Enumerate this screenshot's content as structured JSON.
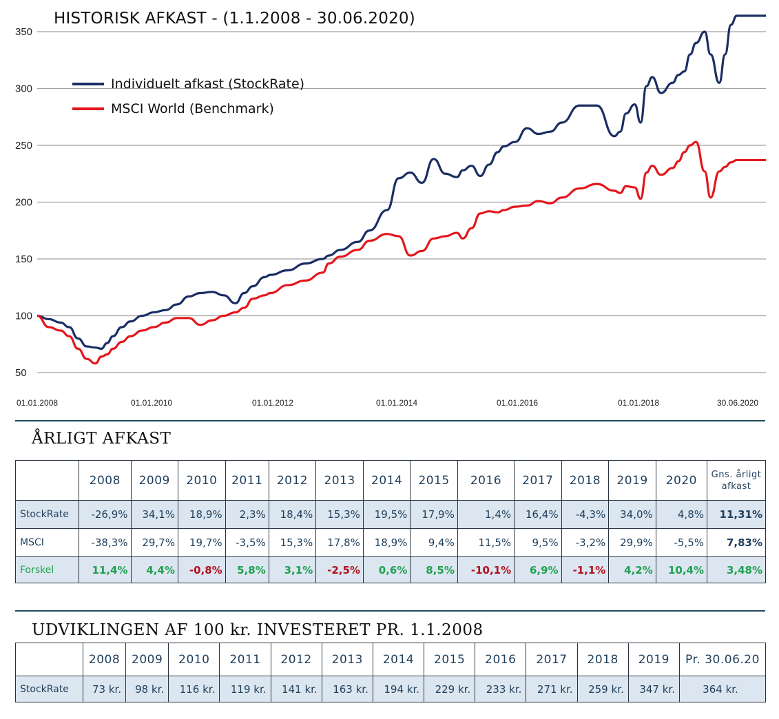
{
  "chart_title": "HISTORISK AFKAST - (1.1.2008 - 30.06.2020)",
  "colors": {
    "stockrate": "#1a2e64",
    "msci": "#e4161c",
    "grid": "#a0a0a0",
    "table_fill": "#dce6f0",
    "positive": "#1fa050",
    "negative": "#b01020"
  },
  "chart_data": {
    "type": "line",
    "title": "HISTORISK AFKAST - (1.1.2008 - 30.06.2020)",
    "xlabel": "",
    "ylabel": "",
    "ylim": [
      50,
      350
    ],
    "yticks": [
      "350",
      "300",
      "250",
      "200",
      "150",
      "100",
      "50"
    ],
    "xticks": [
      "01.01.2008",
      "01.01.2010",
      "01.01.2012",
      "01.01.2014",
      "01.01.2016",
      "01.01.2018",
      "30.06.2020"
    ],
    "grid": true,
    "legend_position": "top-left",
    "series": [
      {
        "name": "Individuelt afkast (StockRate)",
        "x": [
          2008.0,
          2008.2,
          2008.4,
          2008.55,
          2008.7,
          2008.85,
          2009.0,
          2009.1,
          2009.2,
          2009.3,
          2009.45,
          2009.6,
          2009.8,
          2010.0,
          2010.2,
          2010.4,
          2010.6,
          2010.8,
          2011.0,
          2011.2,
          2011.4,
          2011.55,
          2011.7,
          2011.9,
          2012.0,
          2012.3,
          2012.6,
          2012.9,
          2013.0,
          2013.2,
          2013.5,
          2013.7,
          2014.0,
          2014.2,
          2014.4,
          2014.6,
          2014.8,
          2015.0,
          2015.2,
          2015.3,
          2015.45,
          2015.6,
          2015.75,
          2015.9,
          2016.0,
          2016.2,
          2016.4,
          2016.6,
          2016.8,
          2017.0,
          2017.3,
          2017.6,
          2017.9,
          2018.0,
          2018.1,
          2018.25,
          2018.35,
          2018.45,
          2018.55,
          2018.7,
          2018.9,
          2019.0,
          2019.1,
          2019.2,
          2019.3,
          2019.45,
          2019.55,
          2019.7,
          2019.8,
          2019.9,
          2020.0,
          2020.1,
          2020.2,
          2020.3,
          2020.5
        ],
        "y": [
          100,
          97,
          94,
          90,
          80,
          73,
          72,
          71,
          76,
          82,
          90,
          95,
          100,
          103,
          105,
          110,
          117,
          120,
          121,
          118,
          111,
          120,
          126,
          134,
          136,
          140,
          146,
          150,
          153,
          158,
          165,
          175,
          193,
          221,
          226,
          217,
          238,
          225,
          222,
          228,
          232,
          223,
          233,
          244,
          249,
          253,
          265,
          260,
          262,
          270,
          285,
          285,
          258,
          262,
          278,
          286,
          270,
          302,
          310,
          296,
          305,
          312,
          315,
          330,
          340,
          350,
          330,
          305,
          330,
          356,
          364,
          364,
          364,
          364,
          364
        ]
      },
      {
        "name": "MSCI World (Benchmark)",
        "x": [
          2008.0,
          2008.2,
          2008.4,
          2008.55,
          2008.7,
          2008.85,
          2009.0,
          2009.1,
          2009.2,
          2009.3,
          2009.45,
          2009.6,
          2009.8,
          2010.0,
          2010.2,
          2010.4,
          2010.6,
          2010.8,
          2011.0,
          2011.2,
          2011.4,
          2011.55,
          2011.7,
          2011.9,
          2012.0,
          2012.3,
          2012.6,
          2012.9,
          2013.0,
          2013.2,
          2013.5,
          2013.7,
          2014.0,
          2014.2,
          2014.4,
          2014.6,
          2014.8,
          2015.0,
          2015.2,
          2015.3,
          2015.45,
          2015.6,
          2015.75,
          2015.9,
          2016.0,
          2016.2,
          2016.4,
          2016.6,
          2016.8,
          2017.0,
          2017.3,
          2017.6,
          2017.9,
          2018.0,
          2018.1,
          2018.25,
          2018.35,
          2018.45,
          2018.55,
          2018.7,
          2018.9,
          2019.0,
          2019.1,
          2019.2,
          2019.3,
          2019.45,
          2019.55,
          2019.7,
          2019.8,
          2019.9,
          2020.0,
          2020.1,
          2020.2,
          2020.3,
          2020.5
        ],
        "y": [
          100,
          90,
          87,
          82,
          71,
          62,
          58,
          64,
          66,
          71,
          77,
          82,
          87,
          90,
          94,
          98,
          98,
          92,
          96,
          100,
          103,
          107,
          115,
          118,
          120,
          127,
          131,
          138,
          146,
          152,
          158,
          166,
          172,
          170,
          153,
          157,
          168,
          170,
          173,
          168,
          177,
          190,
          192,
          191,
          193,
          196,
          197,
          201,
          199,
          204,
          212,
          216,
          210,
          208,
          214,
          213,
          203,
          226,
          232,
          224,
          230,
          236,
          244,
          250,
          253,
          227,
          204,
          227,
          231,
          235,
          237,
          237,
          237,
          237,
          237
        ]
      }
    ]
  },
  "annual": {
    "title": "ÅRLIGT AFKAST",
    "headers": [
      "",
      "2008",
      "2009",
      "2010",
      "2011",
      "2012",
      "2013",
      "2014",
      "2015",
      "2016",
      "2017",
      "2018",
      "2019",
      "2020",
      "Gns. årligt afkast"
    ],
    "avg_header_line1": "Gns. årligt",
    "avg_header_line2": "afkast",
    "rows": [
      {
        "label": "StockRate",
        "values": [
          "-26,9%",
          "34,1%",
          "18,9%",
          "2,3%",
          "18,4%",
          "15,3%",
          "19,5%",
          "17,9%",
          "1,4%",
          "16,4%",
          "-4,3%",
          "34,0%",
          "4,8%"
        ],
        "avg": "11,31%"
      },
      {
        "label": "MSCI",
        "values": [
          "-38,3%",
          "29,7%",
          "19,7%",
          "-3,5%",
          "15,3%",
          "17,8%",
          "18,9%",
          "9,4%",
          "11,5%",
          "9,5%",
          "-3,2%",
          "29,9%",
          "-5,5%"
        ],
        "avg": "7,83%"
      },
      {
        "label": "Forskel",
        "values": [
          "11,4%",
          "4,4%",
          "-0,8%",
          "5,8%",
          "3,1%",
          "-2,5%",
          "0,6%",
          "8,5%",
          "-10,1%",
          "6,9%",
          "-1,1%",
          "4,2%",
          "10,4%"
        ],
        "avg": "3,48%"
      }
    ]
  },
  "growth": {
    "title": "UDVIKLINGEN AF 100 kr. INVESTERET PR. 1.1.2008",
    "headers": [
      "",
      "2008",
      "2009",
      "2010",
      "2011",
      "2012",
      "2013",
      "2014",
      "2015",
      "2016",
      "2017",
      "2018",
      "2019",
      "Pr. 30.06.20"
    ],
    "row": {
      "label": "StockRate",
      "values": [
        "73 kr.",
        "98 kr.",
        "116 kr.",
        "119 kr.",
        "141 kr.",
        "163 kr.",
        "194 kr.",
        "229 kr.",
        "233 kr.",
        "271 kr.",
        "259 kr.",
        "347 kr.",
        "364 kr."
      ]
    }
  }
}
